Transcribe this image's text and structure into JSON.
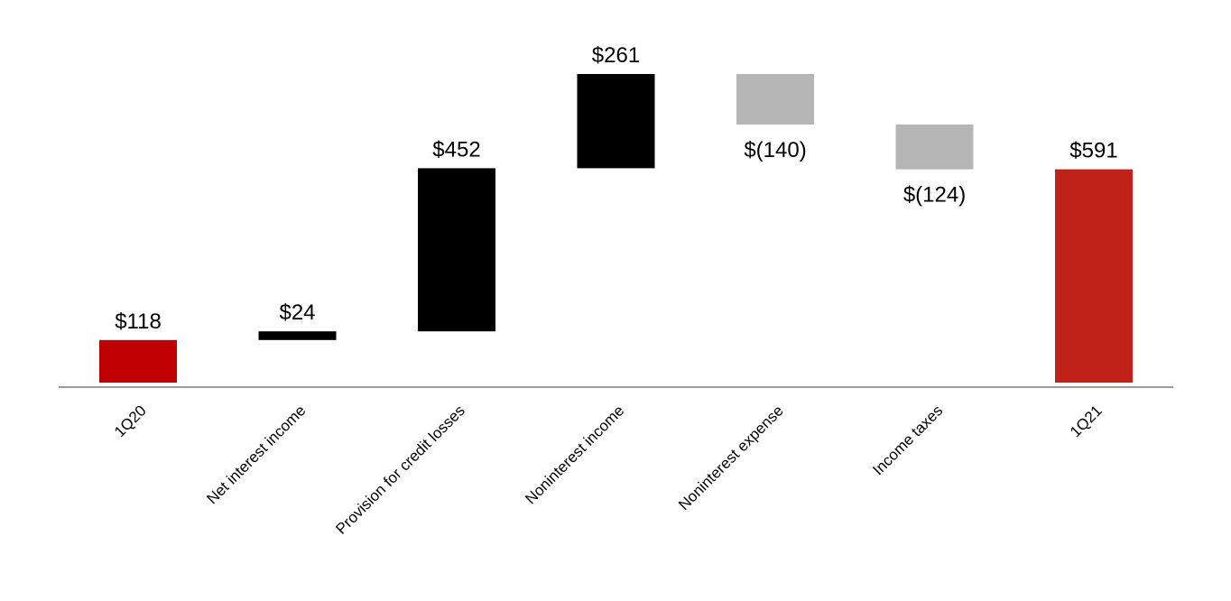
{
  "chart_data": {
    "type": "waterfall",
    "title": "",
    "xlabel": "",
    "ylabel": "",
    "grid": false,
    "categories": [
      "1Q20",
      "Net interest income",
      "Provision for credit losses",
      "Noninterest income",
      "Noninterest expense",
      "Income taxes",
      "1Q21"
    ],
    "values": [
      118,
      24,
      452,
      261,
      -140,
      -124,
      591
    ],
    "kinds": [
      "total",
      "delta",
      "delta",
      "delta",
      "delta",
      "delta",
      "total"
    ],
    "value_labels": [
      "$118",
      "$24",
      "$452",
      "$261",
      "$(140)",
      "$(124)",
      "$591"
    ],
    "colors": {
      "start_total": "#C00000",
      "end_total": "#C0221A",
      "increase": "#000000",
      "decrease": "#B5B5B5",
      "axis": "#9A9A9A"
    },
    "ylim": [
      0,
      860
    ]
  }
}
